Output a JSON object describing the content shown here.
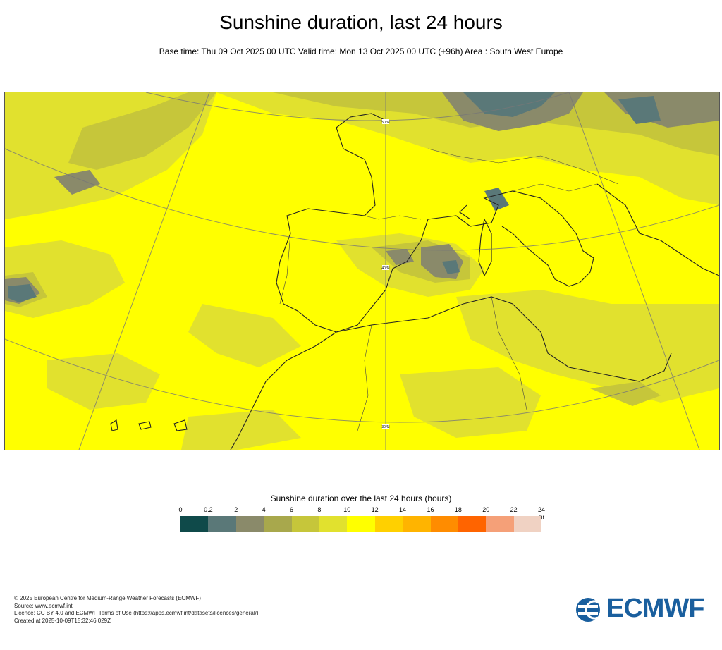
{
  "title": "Sunshine duration, last 24 hours",
  "subtitle": "Base time: Thu 09 Oct 2025 00 UTC Valid time: Mon 13 Oct 2025 00 UTC (+96h) Area : South West Europe",
  "map": {
    "area": "South West Europe",
    "gridlines": [
      "50°N",
      "40°N",
      "30°N"
    ],
    "dominant_value_hours": "10-12"
  },
  "legend": {
    "title": "Sunshine duration over the last 24 hours (hours)",
    "unit": "hr",
    "ticks": [
      "0",
      "0.2",
      "2",
      "4",
      "6",
      "8",
      "10",
      "12",
      "14",
      "16",
      "18",
      "20",
      "22",
      "24"
    ],
    "colors": [
      "#0f4a4a",
      "#5a7878",
      "#8a8a6a",
      "#a8a84c",
      "#c6c63a",
      "#e1e12e",
      "#ffff00",
      "#ffd000",
      "#ffb400",
      "#ff8c00",
      "#ff6400",
      "#f5a078",
      "#f0d2c3"
    ]
  },
  "footer": {
    "line1": "© 2025 European Centre for Medium-Range Weather Forecasts (ECMWF)",
    "line2": "Source: www.ecmwf.int",
    "line3": "Licence: CC BY 4.0 and ECMWF Terms of Use (https://apps.ecmwf.int/datasets/licences/general/)",
    "line4": "Created at 2025-10-09T15:32:46.029Z"
  },
  "logo_text": "ECMWF",
  "brand_color": "#1a5f9e"
}
